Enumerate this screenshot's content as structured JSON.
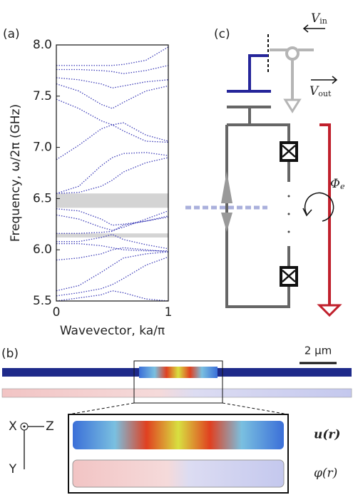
{
  "chart_data": {
    "type": "line",
    "panel_label": "(a)",
    "xlabel": "Wavevector, ka/π",
    "ylabel": "Frequency, ω/2π (GHz)",
    "xlim": [
      0,
      1
    ],
    "ylim": [
      5.5,
      8.0
    ],
    "xticks": [
      0,
      1
    ],
    "yticks": [
      5.5,
      {
        "value": 6,
        "label": "6.0"
      },
      6.5,
      {
        "value": 7,
        "label": "7.0"
      },
      7.5,
      {
        "value": 8,
        "label": "8.0"
      }
    ],
    "color": "#3d3db8",
    "band_color": "#d4d4d4",
    "bands": [
      [
        6.41,
        6.55
      ],
      [
        6.12,
        6.16
      ]
    ],
    "x": [
      0,
      0.2,
      0.4,
      0.5,
      0.6,
      0.8,
      1
    ],
    "series": [
      {
        "values": [
          7.8,
          7.8,
          7.8,
          7.8,
          7.81,
          7.85,
          7.98
        ]
      },
      {
        "values": [
          7.76,
          7.76,
          7.75,
          7.74,
          7.72,
          7.75,
          7.8
        ]
      },
      {
        "values": [
          7.68,
          7.66,
          7.62,
          7.58,
          7.6,
          7.64,
          7.66
        ]
      },
      {
        "values": [
          7.62,
          7.55,
          7.42,
          7.38,
          7.44,
          7.55,
          7.6
        ]
      },
      {
        "values": [
          7.47,
          7.38,
          7.26,
          7.22,
          7.24,
          7.12,
          7.06
        ]
      },
      {
        "values": [
          6.88,
          7.02,
          7.18,
          7.22,
          7.16,
          7.06,
          7.05
        ]
      },
      {
        "values": [
          6.55,
          6.62,
          6.82,
          6.9,
          6.94,
          6.95,
          6.92
        ]
      },
      {
        "values": [
          6.55,
          6.56,
          6.62,
          6.68,
          6.76,
          6.85,
          6.9
        ]
      },
      {
        "values": [
          6.34,
          6.3,
          6.22,
          6.19,
          6.22,
          6.3,
          6.38
        ]
      },
      {
        "values": [
          6.4,
          6.38,
          6.3,
          6.24,
          6.25,
          6.28,
          6.32
        ]
      },
      {
        "values": [
          6.16,
          6.16,
          6.17,
          6.18,
          6.24,
          6.28,
          6.33
        ]
      },
      {
        "values": [
          6.08,
          6.08,
          6.12,
          6.15,
          6.1,
          6.05,
          6.01
        ]
      },
      {
        "values": [
          6.06,
          6.06,
          6.04,
          6.02,
          6.0,
          5.99,
          5.99
        ]
      },
      {
        "values": [
          5.9,
          5.92,
          5.96,
          6.0,
          6.02,
          6.0,
          5.98
        ]
      },
      {
        "values": [
          5.6,
          5.65,
          5.78,
          5.85,
          5.92,
          5.96,
          5.98
        ]
      },
      {
        "values": [
          5.55,
          5.58,
          5.62,
          5.66,
          5.72,
          5.85,
          5.93
        ]
      },
      {
        "values": [
          5.5,
          5.53,
          5.56,
          5.6,
          5.58,
          5.52,
          5.5
        ]
      }
    ]
  },
  "panel_b": {
    "label": "(b)",
    "scale_bar": "2 µm",
    "axes": {
      "x": "X",
      "z": "Z",
      "y": "Y"
    },
    "field_u": "u(r)",
    "field_phi": "φ(r)"
  },
  "panel_c": {
    "label": "(c)",
    "v_in": {
      "symbol": "V",
      "subscript": "in"
    },
    "v_out": {
      "symbol": "V",
      "subscript": "out"
    },
    "flux": {
      "symbol": "Φ",
      "subscript": "e"
    }
  }
}
